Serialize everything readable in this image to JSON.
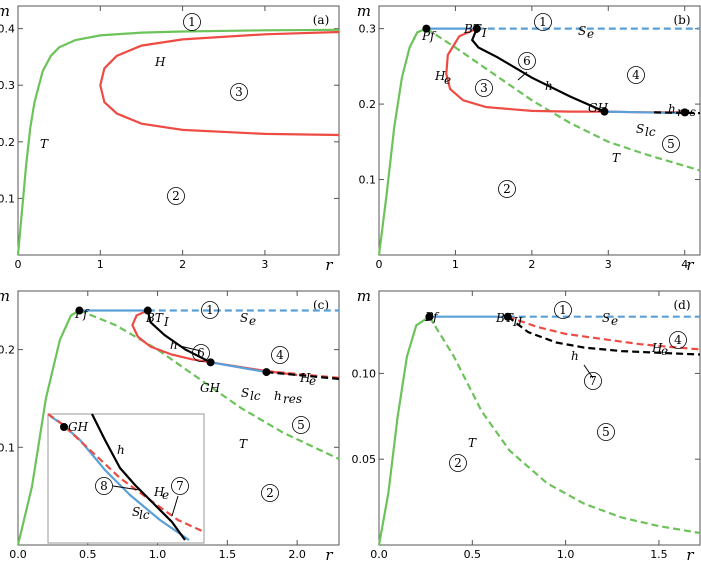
{
  "chart_data": [
    {
      "type": "line",
      "panel": "(a)",
      "xlabel": "r",
      "ylabel": "m",
      "xlim": [
        0,
        3.9
      ],
      "ylim": [
        0,
        0.44
      ],
      "xticks": [
        "0",
        "1",
        "2",
        "3"
      ],
      "yticks": [
        "0.1",
        "0.2",
        "0.3",
        "0.4"
      ],
      "curves": [
        {
          "name": "T",
          "color": "#6cc35a",
          "style": "solid",
          "x": [
            0,
            0.05,
            0.1,
            0.15,
            0.2,
            0.3,
            0.4,
            0.5,
            0.7,
            1.0,
            1.5,
            2.0,
            3.0,
            3.9
          ],
          "y": [
            0,
            0.08,
            0.16,
            0.225,
            0.27,
            0.325,
            0.352,
            0.367,
            0.38,
            0.388,
            0.393,
            0.395,
            0.397,
            0.398
          ]
        },
        {
          "name": "H",
          "color": "#ee4b44",
          "style": "solid",
          "x": [
            3.9,
            3.0,
            2.0,
            1.5,
            1.2,
            1.05,
            1.0,
            1.05,
            1.2,
            1.5,
            2.0,
            3.0,
            3.9
          ],
          "y": [
            0.394,
            0.39,
            0.381,
            0.37,
            0.352,
            0.33,
            0.3,
            0.27,
            0.25,
            0.232,
            0.221,
            0.214,
            0.212
          ]
        }
      ],
      "labels": [
        "T",
        "H"
      ],
      "regions": [
        "1",
        "2",
        "3"
      ]
    },
    {
      "type": "line",
      "panel": "(b)",
      "xlabel": "r",
      "ylabel": "m",
      "xlim": [
        0,
        4.2
      ],
      "ylim": [
        0,
        0.33
      ],
      "xticks": [
        "0",
        "1",
        "2",
        "3",
        "4"
      ],
      "yticks": [
        "0.1",
        "0.2",
        "0.3"
      ],
      "curves": [
        {
          "name": "T",
          "color": "#6cc35a",
          "style": "solid",
          "x": [
            0,
            0.1,
            0.2,
            0.3,
            0.4,
            0.5,
            0.62
          ],
          "y": [
            0,
            0.08,
            0.17,
            0.235,
            0.275,
            0.295,
            0.3
          ]
        },
        {
          "name": "T",
          "color": "#6cc35a",
          "style": "dashed",
          "x": [
            0.62,
            1.0,
            1.5,
            2.0,
            2.5,
            3.0,
            3.5,
            4.2
          ],
          "y": [
            0.3,
            0.275,
            0.24,
            0.205,
            0.175,
            0.15,
            0.133,
            0.112
          ]
        },
        {
          "name": "S_e",
          "color": "#5aa0d8",
          "style": "solid",
          "x": [
            0.62,
            1.28
          ],
          "y": [
            0.3,
            0.3
          ]
        },
        {
          "name": "S_e",
          "color": "#5aa0d8",
          "style": "dashed",
          "x": [
            1.28,
            4.2
          ],
          "y": [
            0.3,
            0.3
          ]
        },
        {
          "name": "H_e",
          "color": "#ee4b44",
          "style": "solid",
          "x": [
            1.28,
            1.05,
            0.9,
            0.88,
            0.93,
            1.1,
            1.4,
            2.0,
            2.5,
            2.95,
            3.5,
            4.0
          ],
          "y": [
            0.3,
            0.29,
            0.265,
            0.24,
            0.22,
            0.205,
            0.196,
            0.191,
            0.19,
            0.19,
            0.189,
            0.189
          ]
        },
        {
          "name": "h",
          "color": "#000000",
          "style": "solid",
          "x": [
            1.28,
            1.22,
            1.3,
            1.55,
            2.0,
            2.5,
            2.95
          ],
          "y": [
            0.3,
            0.285,
            0.275,
            0.262,
            0.235,
            0.21,
            0.19
          ]
        },
        {
          "name": "S_lc",
          "color": "#5aa0d8",
          "style": "solid",
          "x": [
            2.95,
            4.0
          ],
          "y": [
            0.19,
            0.188
          ]
        },
        {
          "name": "h_res",
          "color": "#000000",
          "style": "dashed",
          "x": [
            3.6,
            4.2
          ],
          "y": [
            0.189,
            0.188
          ]
        }
      ],
      "points": [
        {
          "label": "Pf",
          "x": 0.62,
          "y": 0.3
        },
        {
          "label": "BT_I",
          "x": 1.28,
          "y": 0.3
        },
        {
          "label": "GH",
          "x": 2.95,
          "y": 0.19
        },
        {
          "label": "h_res",
          "x": 4.0,
          "y": 0.189
        }
      ],
      "labels": [
        "Pf",
        "BT",
        "I",
        "S",
        "e",
        "H",
        "e",
        "h",
        "GH",
        "h",
        "res",
        "S",
        "lc",
        "T"
      ],
      "regions": [
        "1",
        "2",
        "3",
        "4",
        "5",
        "6"
      ]
    },
    {
      "type": "line",
      "panel": "(c)",
      "xlabel": "r",
      "ylabel": "m",
      "xlim": [
        0,
        2.3
      ],
      "ylim": [
        0,
        0.26
      ],
      "xticks": [
        "0.0",
        "0.5",
        "1.0",
        "1.5",
        "2.0"
      ],
      "yticks": [
        "0.1",
        "0.2"
      ],
      "curves": [
        {
          "name": "T",
          "color": "#6cc35a",
          "style": "solid",
          "x": [
            0,
            0.1,
            0.2,
            0.3,
            0.38,
            0.44
          ],
          "y": [
            0,
            0.06,
            0.15,
            0.21,
            0.235,
            0.24
          ]
        },
        {
          "name": "T",
          "color": "#6cc35a",
          "style": "dashed",
          "x": [
            0.44,
            0.7,
            1.0,
            1.3,
            1.6,
            1.9,
            2.3
          ],
          "y": [
            0.24,
            0.225,
            0.2,
            0.17,
            0.14,
            0.115,
            0.088
          ]
        },
        {
          "name": "S_e",
          "color": "#5aa0d8",
          "style": "solid",
          "x": [
            0.44,
            0.93
          ],
          "y": [
            0.24,
            0.24
          ]
        },
        {
          "name": "S_e",
          "color": "#5aa0d8",
          "style": "dashed",
          "x": [
            0.93,
            2.3
          ],
          "y": [
            0.24,
            0.24
          ]
        },
        {
          "name": "H_e",
          "color": "#ee4b44",
          "style": "solid",
          "x": [
            0.93,
            0.85,
            0.82,
            0.86,
            0.95,
            1.1,
            1.25,
            1.38,
            1.6,
            1.78,
            2.0
          ],
          "y": [
            0.24,
            0.235,
            0.225,
            0.213,
            0.203,
            0.195,
            0.19,
            0.187,
            0.182,
            0.178,
            0.174
          ]
        },
        {
          "name": "H_e",
          "color": "#ee4b44",
          "style": "dashed",
          "x": [
            1.78,
            2.3
          ],
          "y": [
            0.178,
            0.171
          ]
        },
        {
          "name": "h",
          "color": "#000000",
          "style": "solid",
          "x": [
            0.93,
            0.95,
            1.05,
            1.2,
            1.38
          ],
          "y": [
            0.24,
            0.228,
            0.215,
            0.2,
            0.187
          ]
        },
        {
          "name": "S_lc",
          "color": "#5aa0d8",
          "style": "solid",
          "x": [
            1.38,
            1.78
          ],
          "y": [
            0.187,
            0.177
          ]
        },
        {
          "name": "h_res",
          "color": "#000000",
          "style": "dashed",
          "x": [
            1.78,
            2.3
          ],
          "y": [
            0.177,
            0.17
          ]
        }
      ],
      "points": [
        {
          "label": "Pf",
          "x": 0.44,
          "y": 0.24
        },
        {
          "label": "BT_I",
          "x": 0.93,
          "y": 0.24
        },
        {
          "label": "GH",
          "x": 1.38,
          "y": 0.187
        },
        {
          "label": "h_res",
          "x": 1.78,
          "y": 0.177
        }
      ],
      "labels": [
        "Pf",
        "BT",
        "I",
        "S",
        "e",
        "h",
        "GH",
        "S",
        "lc",
        "h",
        "res",
        "H",
        "e",
        "T"
      ],
      "regions": [
        "1",
        "2",
        "4",
        "5",
        "6"
      ],
      "inset": {
        "labels": [
          "GH",
          "h",
          "H",
          "e",
          "S",
          "lc"
        ],
        "regions": [
          "7",
          "8"
        ]
      }
    },
    {
      "type": "line",
      "panel": "(d)",
      "xlabel": "r",
      "ylabel": "m",
      "xlim": [
        0,
        1.72
      ],
      "ylim": [
        0,
        0.148
      ],
      "xticks": [
        "0.0",
        "0.5",
        "1.0",
        "1.5"
      ],
      "yticks": [
        "0.05",
        "0.10"
      ],
      "curves": [
        {
          "name": "T",
          "color": "#6cc35a",
          "style": "solid",
          "x": [
            0,
            0.05,
            0.1,
            0.15,
            0.2,
            0.27
          ],
          "y": [
            0,
            0.03,
            0.075,
            0.11,
            0.128,
            0.133
          ]
        },
        {
          "name": "T",
          "color": "#6cc35a",
          "style": "dashed",
          "x": [
            0.27,
            0.4,
            0.55,
            0.7,
            0.9,
            1.1,
            1.3,
            1.5,
            1.72
          ],
          "y": [
            0.133,
            0.11,
            0.078,
            0.055,
            0.036,
            0.024,
            0.016,
            0.011,
            0.007
          ]
        },
        {
          "name": "S_e",
          "color": "#5aa0d8",
          "style": "solid",
          "x": [
            0.27,
            0.69
          ],
          "y": [
            0.133,
            0.133
          ]
        },
        {
          "name": "S_e",
          "color": "#5aa0d8",
          "style": "dashed",
          "x": [
            0.69,
            1.72
          ],
          "y": [
            0.133,
            0.133
          ]
        },
        {
          "name": "H_e",
          "color": "#ee4b44",
          "style": "dashed",
          "x": [
            0.69,
            0.85,
            1.0,
            1.2,
            1.4,
            1.6,
            1.72
          ],
          "y": [
            0.133,
            0.127,
            0.123,
            0.12,
            0.117,
            0.115,
            0.114
          ]
        },
        {
          "name": "h",
          "color": "#000000",
          "style": "dashed",
          "x": [
            0.69,
            0.8,
            0.95,
            1.1,
            1.3,
            1.5,
            1.72
          ],
          "y": [
            0.133,
            0.124,
            0.118,
            0.115,
            0.113,
            0.112,
            0.111
          ]
        }
      ],
      "points": [
        {
          "label": "Pf",
          "x": 0.27,
          "y": 0.133
        },
        {
          "label": "BT_II",
          "x": 0.69,
          "y": 0.133
        }
      ],
      "labels": [
        "Pf",
        "BT",
        "II",
        "S",
        "e",
        "H",
        "e",
        "h",
        "T"
      ],
      "regions": [
        "1",
        "2",
        "4",
        "5",
        "7"
      ]
    }
  ]
}
